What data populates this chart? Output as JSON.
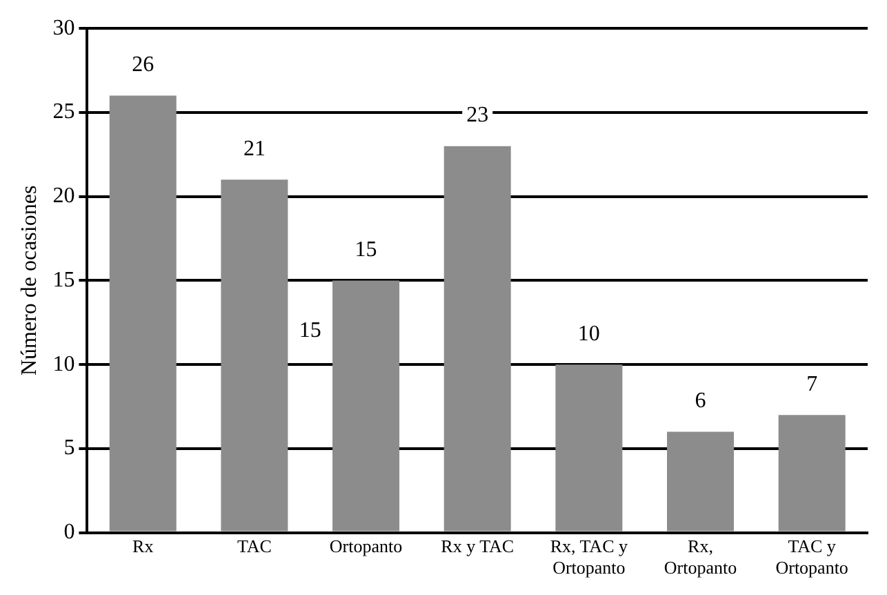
{
  "chart_data": {
    "type": "bar",
    "ylabel": "Número de ocasiones",
    "categories": [
      "Rx",
      "TAC",
      "Ortopanto",
      "Rx y TAC",
      "Rx, TAC y Ortopanto",
      "Rx, Ortopanto",
      "TAC y Ortopanto"
    ],
    "values": [
      26,
      21,
      15,
      23,
      10,
      6,
      7
    ],
    "color": "#8c8c8c",
    "ylim": [
      0,
      30
    ],
    "yticks": [
      0,
      5,
      10,
      15,
      20,
      25,
      30
    ],
    "grid": "y",
    "data_labels": true,
    "legend": false,
    "annotations": [
      "15"
    ]
  }
}
